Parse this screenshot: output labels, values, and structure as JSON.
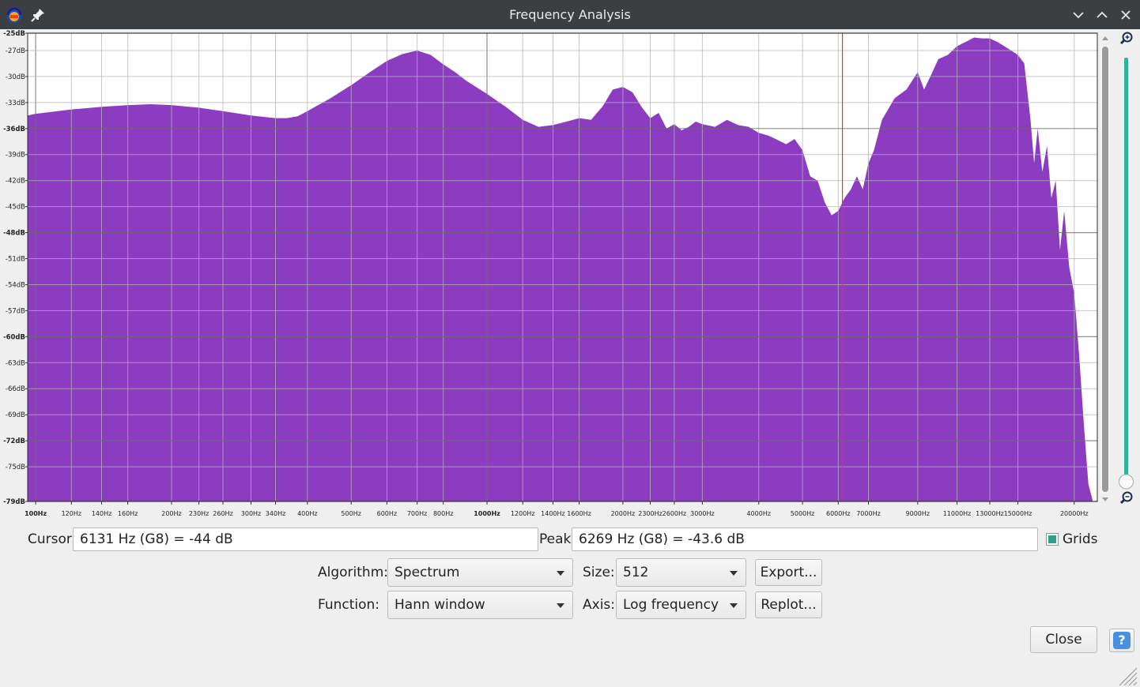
{
  "window": {
    "title": "Frequency Analysis",
    "icons": [
      "audacity-logo-icon",
      "pin-icon",
      "minimize-icon",
      "maximize-icon",
      "close-icon"
    ]
  },
  "chart_data": {
    "type": "area",
    "xlabel": "",
    "ylabel": "",
    "x_scale": "log",
    "xlim": [
      96,
      22500
    ],
    "ylim": [
      -79,
      -25
    ],
    "grid": true,
    "fill_color": "#8b3cc0",
    "cursor_line_hz": 6131,
    "cursor_line_color": "#ff2b2b",
    "x_ticks": [
      {
        "hz": 100,
        "label": "100Hz",
        "major": true
      },
      {
        "hz": 120,
        "label": "120Hz"
      },
      {
        "hz": 140,
        "label": "140Hz"
      },
      {
        "hz": 160,
        "label": "160Hz"
      },
      {
        "hz": 200,
        "label": "200Hz"
      },
      {
        "hz": 230,
        "label": "230Hz"
      },
      {
        "hz": 260,
        "label": "260Hz"
      },
      {
        "hz": 300,
        "label": "300Hz"
      },
      {
        "hz": 340,
        "label": "340Hz"
      },
      {
        "hz": 400,
        "label": "400Hz"
      },
      {
        "hz": 500,
        "label": "500Hz"
      },
      {
        "hz": 600,
        "label": "600Hz"
      },
      {
        "hz": 700,
        "label": "700Hz"
      },
      {
        "hz": 800,
        "label": "800Hz"
      },
      {
        "hz": 1000,
        "label": "1000Hz",
        "major": true
      },
      {
        "hz": 1200,
        "label": "1200Hz"
      },
      {
        "hz": 1400,
        "label": "1400Hz"
      },
      {
        "hz": 1600,
        "label": "1600Hz"
      },
      {
        "hz": 2000,
        "label": "2000Hz"
      },
      {
        "hz": 2300,
        "label": "2300Hz"
      },
      {
        "hz": 2600,
        "label": "2600Hz"
      },
      {
        "hz": 3000,
        "label": "3000Hz"
      },
      {
        "hz": 4000,
        "label": "4000Hz"
      },
      {
        "hz": 5000,
        "label": "5000Hz"
      },
      {
        "hz": 6000,
        "label": "6000Hz"
      },
      {
        "hz": 7000,
        "label": "7000Hz"
      },
      {
        "hz": 9000,
        "label": "9000Hz"
      },
      {
        "hz": 11000,
        "label": "11000Hz"
      },
      {
        "hz": 13000,
        "label": "13000Hz"
      },
      {
        "hz": 15000,
        "label": "15000Hz"
      },
      {
        "hz": 20000,
        "label": "20000Hz"
      }
    ],
    "y_ticks": [
      {
        "db": -25,
        "label": "-25dB",
        "major": true
      },
      {
        "db": -27,
        "label": "-27dB"
      },
      {
        "db": -30,
        "label": "-30dB"
      },
      {
        "db": -33,
        "label": "-33dB"
      },
      {
        "db": -36,
        "label": "-36dB",
        "major": true
      },
      {
        "db": -39,
        "label": "-39dB"
      },
      {
        "db": -42,
        "label": "-42dB"
      },
      {
        "db": -45,
        "label": "-45dB"
      },
      {
        "db": -48,
        "label": "-48dB",
        "major": true
      },
      {
        "db": -51,
        "label": "-51dB"
      },
      {
        "db": -54,
        "label": "-54dB"
      },
      {
        "db": -57,
        "label": "-57dB"
      },
      {
        "db": -60,
        "label": "-60dB",
        "major": true
      },
      {
        "db": -63,
        "label": "-63dB"
      },
      {
        "db": -66,
        "label": "-66dB"
      },
      {
        "db": -69,
        "label": "-69dB"
      },
      {
        "db": -72,
        "label": "-72dB",
        "major": true
      },
      {
        "db": -75,
        "label": "-75dB"
      },
      {
        "db": -79,
        "label": "-79dB",
        "major": true
      }
    ],
    "series": [
      {
        "x": [
          96,
          100,
          120,
          140,
          160,
          180,
          200,
          230,
          260,
          300,
          340,
          360,
          380,
          400,
          450,
          500,
          550,
          600,
          650,
          700,
          750,
          800,
          850,
          900,
          1000,
          1100,
          1200,
          1300,
          1400,
          1500,
          1600,
          1700,
          1800,
          1900,
          2000,
          2100,
          2200,
          2300,
          2400,
          2500,
          2600,
          2700,
          2800,
          2900,
          3000,
          3200,
          3400,
          3600,
          3800,
          4000,
          4200,
          4400,
          4600,
          4800,
          5000,
          5200,
          5400,
          5600,
          5800,
          6000,
          6200,
          6400,
          6600,
          6800,
          7000,
          7200,
          7500,
          8000,
          8500,
          9000,
          9300,
          9600,
          10000,
          10500,
          11000,
          11500,
          12000,
          12500,
          13000,
          13500,
          14000,
          14500,
          15000,
          15500,
          16000,
          16300,
          16600,
          17000,
          17400,
          17800,
          18200,
          18600,
          19000,
          19500,
          20000,
          20500,
          21000,
          21500,
          22000,
          22500
        ],
        "values": [
          -34.5,
          -34.3,
          -33.8,
          -33.5,
          -33.3,
          -33.2,
          -33.3,
          -33.6,
          -34.0,
          -34.5,
          -34.8,
          -34.8,
          -34.6,
          -34.0,
          -32.5,
          -31.0,
          -29.5,
          -28.2,
          -27.4,
          -27.0,
          -27.5,
          -28.6,
          -29.5,
          -30.5,
          -32.0,
          -33.5,
          -35.0,
          -35.8,
          -35.6,
          -35.2,
          -34.8,
          -35.0,
          -33.5,
          -31.5,
          -31.2,
          -31.8,
          -33.5,
          -34.8,
          -34.2,
          -36.0,
          -35.5,
          -36.2,
          -35.8,
          -35.2,
          -35.5,
          -35.8,
          -35.0,
          -35.6,
          -35.8,
          -36.5,
          -36.8,
          -37.3,
          -37.8,
          -37.2,
          -38.5,
          -41.5,
          -42.0,
          -44.5,
          -46.0,
          -45.5,
          -44.0,
          -43.0,
          -41.5,
          -43.0,
          -40.0,
          -38.5,
          -35.0,
          -32.5,
          -31.5,
          -29.5,
          -31.5,
          -30.0,
          -28.0,
          -27.5,
          -26.5,
          -26.0,
          -25.5,
          -25.6,
          -25.6,
          -26.0,
          -26.5,
          -27.0,
          -27.5,
          -28.5,
          -35.0,
          -40.0,
          -36.0,
          -41.0,
          -38.0,
          -44.0,
          -42.0,
          -50.0,
          -45.5,
          -52.0,
          -55.0,
          -62.0,
          -70.0,
          -77.0,
          -79.0,
          -79.0
        ]
      }
    ]
  },
  "status": {
    "cursor_label": "Cursor:",
    "cursor_value": "6131 Hz (G8) = -44 dB",
    "peak_label": "Peak:",
    "peak_value": "6269 Hz (G8) = -43.6 dB",
    "grids_label": "Grids",
    "grids_checked": true
  },
  "controls": {
    "algorithm_label": "Algorithm:",
    "algorithm_value": "Spectrum",
    "size_label": "Size:",
    "size_value": "512",
    "export_label": "Export...",
    "function_label": "Function:",
    "function_value": "Hann window",
    "axis_label": "Axis:",
    "axis_value": "Log frequency",
    "replot_label": "Replot..."
  },
  "footer": {
    "close_label": "Close",
    "help_label": "?"
  }
}
